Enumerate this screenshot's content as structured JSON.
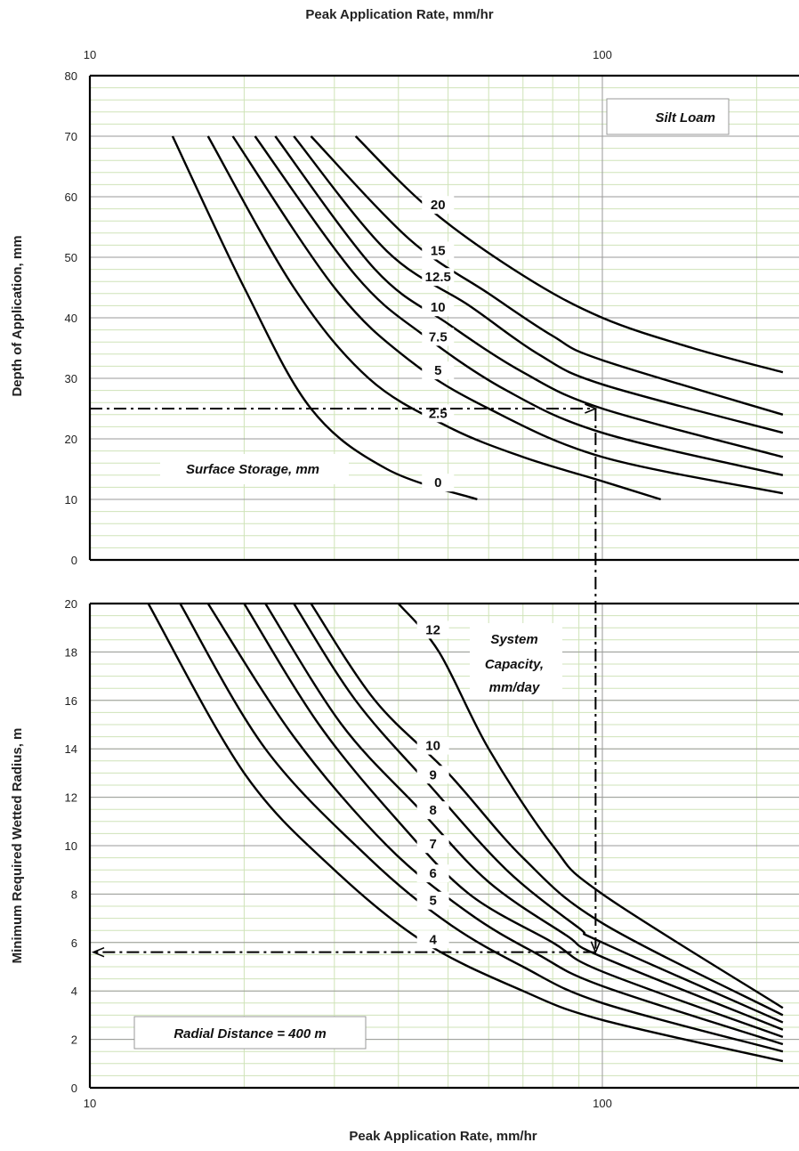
{
  "chart_data": [
    {
      "type": "line",
      "panel": "top",
      "title": "Peak Application Rate, mm/hr",
      "xlabel": "Peak Application Rate, mm/hr",
      "ylabel": "Depth of Application, mm",
      "xscale": "log",
      "xlim": [
        10,
        225
      ],
      "ylim": [
        0,
        80
      ],
      "x_ticks": [
        "10",
        "100"
      ],
      "y_ticks": [
        "0",
        "10",
        "20",
        "30",
        "40",
        "50",
        "60",
        "70",
        "80"
      ],
      "grid": true,
      "annotation_box": "Silt Loam",
      "series_group_label": "Surface Storage, mm",
      "series": [
        {
          "name": "0",
          "points": [
            [
              14.5,
              70
            ],
            [
              20,
              45
            ],
            [
              27,
              25
            ],
            [
              38,
              15
            ],
            [
              57,
              10
            ]
          ]
        },
        {
          "name": "2.5",
          "points": [
            [
              17,
              70
            ],
            [
              25,
              45
            ],
            [
              35,
              30
            ],
            [
              50,
              22
            ],
            [
              70,
              17
            ],
            [
              100,
              13
            ],
            [
              130,
              10
            ]
          ]
        },
        {
          "name": "5",
          "points": [
            [
              19,
              70
            ],
            [
              30,
              45
            ],
            [
              42,
              33
            ],
            [
              60,
              25
            ],
            [
              100,
              17
            ],
            [
              225,
              11
            ]
          ]
        },
        {
          "name": "7.5",
          "points": [
            [
              21,
              70
            ],
            [
              33,
              47
            ],
            [
              45,
              37
            ],
            [
              65,
              28
            ],
            [
              100,
              21
            ],
            [
              225,
              14
            ]
          ]
        },
        {
          "name": "10",
          "points": [
            [
              23,
              70
            ],
            [
              36,
              48
            ],
            [
              50,
              39
            ],
            [
              70,
              31
            ],
            [
              100,
              25
            ],
            [
              225,
              17
            ]
          ]
        },
        {
          "name": "12.5",
          "points": [
            [
              25,
              70
            ],
            [
              38,
              51
            ],
            [
              55,
              42
            ],
            [
              75,
              34
            ],
            [
              100,
              29
            ],
            [
              225,
              21
            ]
          ]
        },
        {
          "name": "15",
          "points": [
            [
              27,
              70
            ],
            [
              42,
              53
            ],
            [
              60,
              44
            ],
            [
              80,
              37
            ],
            [
              100,
              33
            ],
            [
              225,
              24
            ]
          ]
        },
        {
          "name": "20",
          "points": [
            [
              33,
              70
            ],
            [
              46,
              58
            ],
            [
              70,
              47
            ],
            [
              100,
              40
            ],
            [
              150,
              35
            ],
            [
              225,
              31
            ]
          ]
        }
      ],
      "example_path": {
        "x_start": 10,
        "y": 25,
        "x_end": 97
      },
      "labels": [
        "Surface Storage, mm",
        "Silt Loam"
      ]
    },
    {
      "type": "line",
      "panel": "bottom",
      "xlabel": "Peak Application Rate, mm/hr",
      "ylabel": "Minimum Required Wetted Radius, m",
      "xscale": "log",
      "xlim": [
        10,
        225
      ],
      "ylim": [
        0,
        20
      ],
      "x_ticks": [
        "10",
        "100"
      ],
      "y_ticks": [
        "0",
        "2",
        "4",
        "6",
        "8",
        "10",
        "12",
        "14",
        "16",
        "18",
        "20"
      ],
      "grid": true,
      "annotation_box": "Radial Distance = 400 m",
      "series_group_label": "System Capacity, mm/day",
      "series": [
        {
          "name": "4",
          "points": [
            [
              13,
              20
            ],
            [
              20,
              13
            ],
            [
              30,
              9
            ],
            [
              45,
              6
            ],
            [
              70,
              4
            ],
            [
              100,
              2.8
            ],
            [
              225,
              1.1
            ]
          ]
        },
        {
          "name": "5",
          "points": [
            [
              15,
              20
            ],
            [
              22,
              14
            ],
            [
              35,
              9.5
            ],
            [
              50,
              6.8
            ],
            [
              70,
              5
            ],
            [
              100,
              3.5
            ],
            [
              225,
              1.5
            ]
          ]
        },
        {
          "name": "6",
          "points": [
            [
              17,
              20
            ],
            [
              25,
              14.5
            ],
            [
              38,
              10
            ],
            [
              55,
              7.2
            ],
            [
              75,
              5.5
            ],
            [
              100,
              4.2
            ],
            [
              225,
              1.8
            ]
          ]
        },
        {
          "name": "7",
          "points": [
            [
              20,
              20
            ],
            [
              28,
              15
            ],
            [
              40,
              11
            ],
            [
              55,
              8
            ],
            [
              80,
              6
            ],
            [
              100,
              4.8
            ],
            [
              225,
              2.1
            ]
          ]
        },
        {
          "name": "8",
          "points": [
            [
              22,
              20
            ],
            [
              31,
              15
            ],
            [
              44,
              11.5
            ],
            [
              60,
              8.5
            ],
            [
              85,
              6.3
            ],
            [
              100,
              5.4
            ],
            [
              225,
              2.4
            ]
          ]
        },
        {
          "name": "9",
          "points": [
            [
              25,
              20
            ],
            [
              33,
              16
            ],
            [
              46,
              12.5
            ],
            [
              65,
              9
            ],
            [
              90,
              6.6
            ],
            [
              100,
              6
            ],
            [
              225,
              2.7
            ]
          ]
        },
        {
          "name": "10",
          "points": [
            [
              27,
              20
            ],
            [
              36,
              16
            ],
            [
              50,
              13
            ],
            [
              70,
              9.5
            ],
            [
              100,
              6.8
            ],
            [
              225,
              3
            ]
          ]
        },
        {
          "name": "12",
          "points": [
            [
              40,
              20
            ],
            [
              48,
              18
            ],
            [
              60,
              14
            ],
            [
              80,
              10
            ],
            [
              100,
              8
            ],
            [
              225,
              3.3
            ]
          ]
        }
      ],
      "example_path": {
        "x": 97,
        "y_end": 5.6,
        "x_end": 10
      },
      "labels": [
        "System Capacity, mm/day",
        "Radial Distance = 400 m"
      ]
    }
  ],
  "text": {
    "top_axis_title": "Peak Application Rate, mm/hr",
    "bottom_axis_title": "Peak Application Rate, mm/hr",
    "top_ylabel": "Depth of Application, mm",
    "bottom_ylabel": "Minimum Required Wetted Radius, m",
    "silt_loam": "Silt Loam",
    "surface_storage": "Surface Storage, mm",
    "system_capacity_1": "System",
    "system_capacity_2": "Capacity,",
    "system_capacity_3": "mm/day",
    "radial_distance": "Radial Distance = 400 m",
    "top_x_tick_10": "10",
    "top_x_tick_100": "100",
    "bottom_x_tick_10": "10",
    "bottom_x_tick_100": "100"
  }
}
